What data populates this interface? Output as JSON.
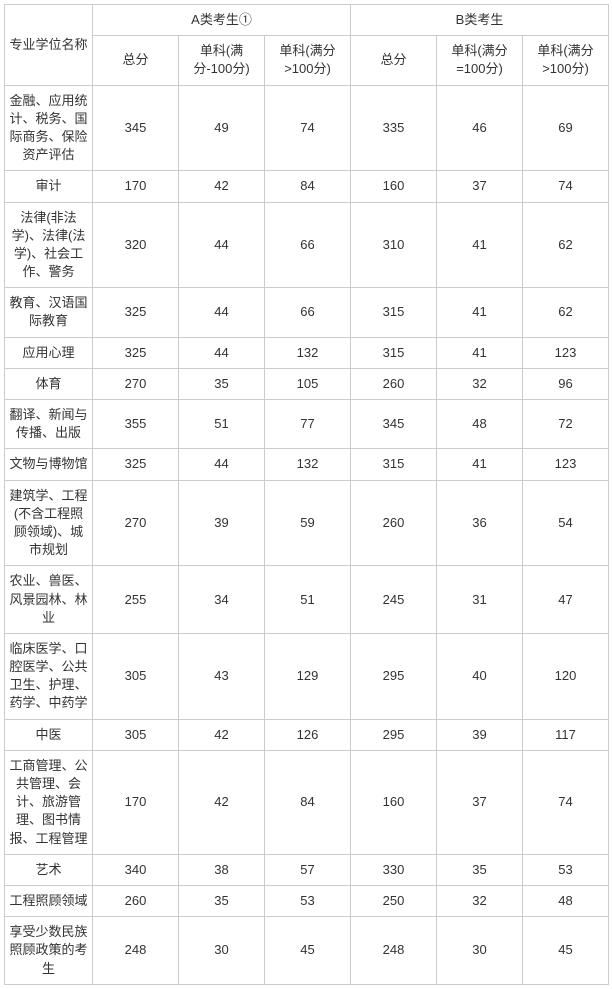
{
  "table": {
    "border_color": "#cccccc",
    "text_color": "#333333",
    "background_color": "#ffffff",
    "font_size": 13,
    "header_group_a": "A类考生①",
    "header_group_b": "B类考生",
    "col_name": "专业学位名称",
    "col_total": "总分",
    "col_sub_le100_a": "单科(满分-100分)",
    "col_sub_gt100_a": "单科(满分>100分)",
    "col_total_b": "总分",
    "col_sub_eq100_b": "单科(满分=100分)",
    "col_sub_gt100_b": "单科(满分>100分)",
    "rows": [
      {
        "name": "金融、应用统计、税务、国际商务、保险资产评估",
        "a_total": "345",
        "a_s1": "49",
        "a_s2": "74",
        "b_total": "335",
        "b_s1": "46",
        "b_s2": "69"
      },
      {
        "name": "审计",
        "a_total": "170",
        "a_s1": "42",
        "a_s2": "84",
        "b_total": "160",
        "b_s1": "37",
        "b_s2": "74"
      },
      {
        "name": "法律(非法学)、法律(法学)、社会工作、警务",
        "a_total": "320",
        "a_s1": "44",
        "a_s2": "66",
        "b_total": "310",
        "b_s1": "41",
        "b_s2": "62"
      },
      {
        "name": "教育、汉语国际教育",
        "a_total": "325",
        "a_s1": "44",
        "a_s2": "66",
        "b_total": "315",
        "b_s1": "41",
        "b_s2": "62"
      },
      {
        "name": "应用心理",
        "a_total": "325",
        "a_s1": "44",
        "a_s2": "132",
        "b_total": "315",
        "b_s1": "41",
        "b_s2": "123"
      },
      {
        "name": "体育",
        "a_total": "270",
        "a_s1": "35",
        "a_s2": "105",
        "b_total": "260",
        "b_s1": "32",
        "b_s2": "96"
      },
      {
        "name": "翻译、新闻与传播、出版",
        "a_total": "355",
        "a_s1": "51",
        "a_s2": "77",
        "b_total": "345",
        "b_s1": "48",
        "b_s2": "72"
      },
      {
        "name": "文物与博物馆",
        "a_total": "325",
        "a_s1": "44",
        "a_s2": "132",
        "b_total": "315",
        "b_s1": "41",
        "b_s2": "123"
      },
      {
        "name": "建筑学、工程(不含工程照顾领域)、城市规划",
        "a_total": "270",
        "a_s1": "39",
        "a_s2": "59",
        "b_total": "260",
        "b_s1": "36",
        "b_s2": "54"
      },
      {
        "name": "农业、兽医、风景园林、林业",
        "a_total": "255",
        "a_s1": "34",
        "a_s2": "51",
        "b_total": "245",
        "b_s1": "31",
        "b_s2": "47"
      },
      {
        "name": "临床医学、口腔医学、公共卫生、护理、药学、中药学",
        "a_total": "305",
        "a_s1": "43",
        "a_s2": "129",
        "b_total": "295",
        "b_s1": "40",
        "b_s2": "120"
      },
      {
        "name": "中医",
        "a_total": "305",
        "a_s1": "42",
        "a_s2": "126",
        "b_total": "295",
        "b_s1": "39",
        "b_s2": "117"
      },
      {
        "name": "工商管理、公共管理、会计、旅游管理、图书情报、工程管理",
        "a_total": "170",
        "a_s1": "42",
        "a_s2": "84",
        "b_total": "160",
        "b_s1": "37",
        "b_s2": "74"
      },
      {
        "name": "艺术",
        "a_total": "340",
        "a_s1": "38",
        "a_s2": "57",
        "b_total": "330",
        "b_s1": "35",
        "b_s2": "53"
      },
      {
        "name": "工程照顾领域",
        "a_total": "260",
        "a_s1": "35",
        "a_s2": "53",
        "b_total": "250",
        "b_s1": "32",
        "b_s2": "48"
      },
      {
        "name": "享受少数民族照顾政策的考生",
        "a_total": "248",
        "a_s1": "30",
        "a_s2": "45",
        "b_total": "248",
        "b_s1": "30",
        "b_s2": "45"
      }
    ]
  }
}
